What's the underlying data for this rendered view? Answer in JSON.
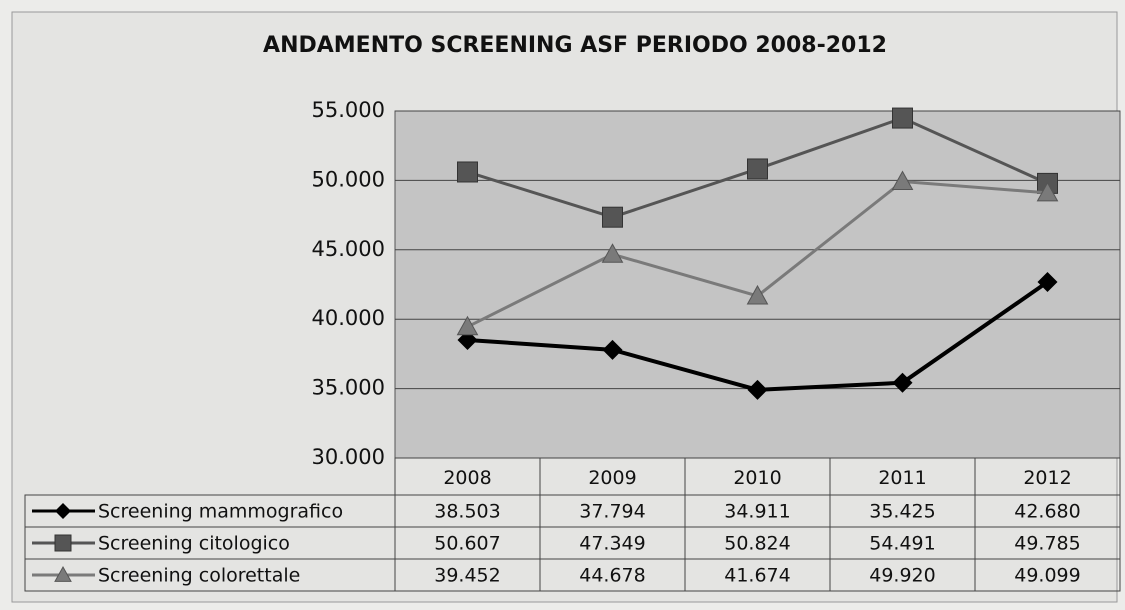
{
  "chart_data": {
    "type": "line",
    "title": "ANDAMENTO SCREENING ASF PERIODO 2008-2012",
    "categories": [
      "2008",
      "2009",
      "2010",
      "2011",
      "2012"
    ],
    "series": [
      {
        "name": "Screening mammografico",
        "color": "#000000",
        "marker": "diamond",
        "values": [
          38503,
          37794,
          34911,
          35425,
          42680
        ],
        "value_labels": [
          "38.503",
          "37.794",
          "34.911",
          "35.425",
          "42.680"
        ]
      },
      {
        "name": "Screening citologico",
        "color": "#555555",
        "marker": "square",
        "values": [
          50607,
          47349,
          50824,
          54491,
          49785
        ],
        "value_labels": [
          "50.607",
          "47.349",
          "50.824",
          "54.491",
          "49.785"
        ]
      },
      {
        "name": "Screening colorettale",
        "color": "#7a7a7a",
        "marker": "triangle",
        "values": [
          39452,
          44678,
          41674,
          49920,
          49099
        ],
        "value_labels": [
          "39.452",
          "44.678",
          "41.674",
          "49.920",
          "49.099"
        ]
      }
    ],
    "ylim": [
      30000,
      55000
    ],
    "yticks": [
      {
        "value": 30000,
        "label": "30.000"
      },
      {
        "value": 35000,
        "label": "35.000"
      },
      {
        "value": 40000,
        "label": "40.000"
      },
      {
        "value": 45000,
        "label": "45.000"
      },
      {
        "value": 50000,
        "label": "50.000"
      },
      {
        "value": 55000,
        "label": "55.000"
      }
    ],
    "grid": true
  }
}
